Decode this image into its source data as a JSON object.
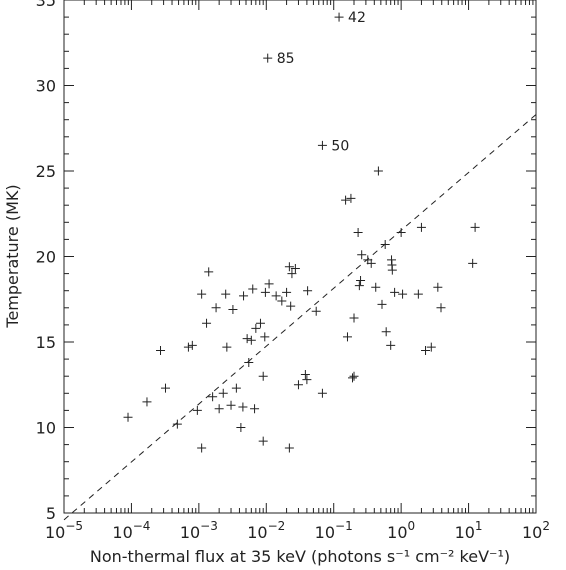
{
  "chart_data": {
    "type": "scatter",
    "title": "",
    "xlabel": "Non-thermal flux at 35 keV  (photons s⁻¹ cm⁻² keV⁻¹)",
    "ylabel": "Temperature (MK)",
    "x_scale": "log",
    "xlim": [
      1e-05,
      100
    ],
    "ylim": [
      5,
      35
    ],
    "x_ticks": [
      {
        "value": 1e-05,
        "base": "10",
        "exp": "−5"
      },
      {
        "value": 0.0001,
        "base": "10",
        "exp": "−4"
      },
      {
        "value": 0.001,
        "base": "10",
        "exp": "−3"
      },
      {
        "value": 0.01,
        "base": "10",
        "exp": "−2"
      },
      {
        "value": 0.1,
        "base": "10",
        "exp": "−1"
      },
      {
        "value": 1,
        "base": "10",
        "exp": "0"
      },
      {
        "value": 10,
        "base": "10",
        "exp": "1"
      },
      {
        "value": 100,
        "base": "10",
        "exp": "2"
      }
    ],
    "y_ticks": [
      5,
      10,
      15,
      20,
      25,
      30,
      35
    ],
    "grid": false,
    "marker": "+",
    "fit_line": {
      "style": "dashed",
      "points": [
        [
          1e-05,
          4.6
        ],
        [
          100,
          28.3
        ]
      ]
    },
    "labels": [
      {
        "text": "42",
        "x": 0.12,
        "y": 34.0
      },
      {
        "text": "85",
        "x": 0.0105,
        "y": 31.6
      },
      {
        "text": "50",
        "x": 0.068,
        "y": 26.5
      }
    ],
    "points": [
      [
        0.12,
        34.0
      ],
      [
        0.0105,
        31.6
      ],
      [
        0.068,
        26.5
      ],
      [
        8.9e-05,
        10.6
      ],
      [
        0.00017,
        11.5
      ],
      [
        0.00027,
        14.5
      ],
      [
        0.00032,
        12.3
      ],
      [
        0.00048,
        10.2
      ],
      [
        0.0007,
        14.7
      ],
      [
        0.0008,
        14.8
      ],
      [
        0.00095,
        11.0
      ],
      [
        0.0011,
        8.8
      ],
      [
        0.0011,
        17.8
      ],
      [
        0.0013,
        16.1
      ],
      [
        0.0014,
        19.1
      ],
      [
        0.0016,
        11.8
      ],
      [
        0.0018,
        17.0
      ],
      [
        0.002,
        11.1
      ],
      [
        0.0023,
        12.0
      ],
      [
        0.0025,
        17.8
      ],
      [
        0.0026,
        14.7
      ],
      [
        0.003,
        11.3
      ],
      [
        0.0032,
        16.9
      ],
      [
        0.0036,
        12.3
      ],
      [
        0.0042,
        10.0
      ],
      [
        0.0045,
        11.2
      ],
      [
        0.0046,
        17.7
      ],
      [
        0.0052,
        15.2
      ],
      [
        0.0055,
        13.8
      ],
      [
        0.006,
        15.1
      ],
      [
        0.0063,
        18.1
      ],
      [
        0.0067,
        11.1
      ],
      [
        0.007,
        15.8
      ],
      [
        0.0082,
        16.1
      ],
      [
        0.009,
        9.2
      ],
      [
        0.009,
        13.0
      ],
      [
        0.0095,
        15.3
      ],
      [
        0.0097,
        17.9
      ],
      [
        0.011,
        18.4
      ],
      [
        0.014,
        17.7
      ],
      [
        0.017,
        17.4
      ],
      [
        0.02,
        17.9
      ],
      [
        0.022,
        8.8
      ],
      [
        0.022,
        19.4
      ],
      [
        0.023,
        17.1
      ],
      [
        0.024,
        19.0
      ],
      [
        0.027,
        19.3
      ],
      [
        0.03,
        12.5
      ],
      [
        0.038,
        13.1
      ],
      [
        0.04,
        12.8
      ],
      [
        0.041,
        18.0
      ],
      [
        0.055,
        16.8
      ],
      [
        0.068,
        12.0
      ],
      [
        0.15,
        23.3
      ],
      [
        0.16,
        15.3
      ],
      [
        0.18,
        23.4
      ],
      [
        0.19,
        12.9
      ],
      [
        0.2,
        13.0
      ],
      [
        0.2,
        16.4
      ],
      [
        0.23,
        21.4
      ],
      [
        0.24,
        18.3
      ],
      [
        0.25,
        18.6
      ],
      [
        0.26,
        20.1
      ],
      [
        0.32,
        19.8
      ],
      [
        0.36,
        19.6
      ],
      [
        0.42,
        18.2
      ],
      [
        0.46,
        25.0
      ],
      [
        0.52,
        17.2
      ],
      [
        0.58,
        20.7
      ],
      [
        0.6,
        15.6
      ],
      [
        0.7,
        14.8
      ],
      [
        0.72,
        19.8
      ],
      [
        0.73,
        19.5
      ],
      [
        0.74,
        19.2
      ],
      [
        0.8,
        17.9
      ],
      [
        1.0,
        21.4
      ],
      [
        1.05,
        17.8
      ],
      [
        1.8,
        17.8
      ],
      [
        2.0,
        21.7
      ],
      [
        2.3,
        14.5
      ],
      [
        2.8,
        14.7
      ],
      [
        3.5,
        18.2
      ],
      [
        3.9,
        17.0
      ],
      [
        11.5,
        19.6
      ],
      [
        12.5,
        21.7
      ]
    ]
  }
}
